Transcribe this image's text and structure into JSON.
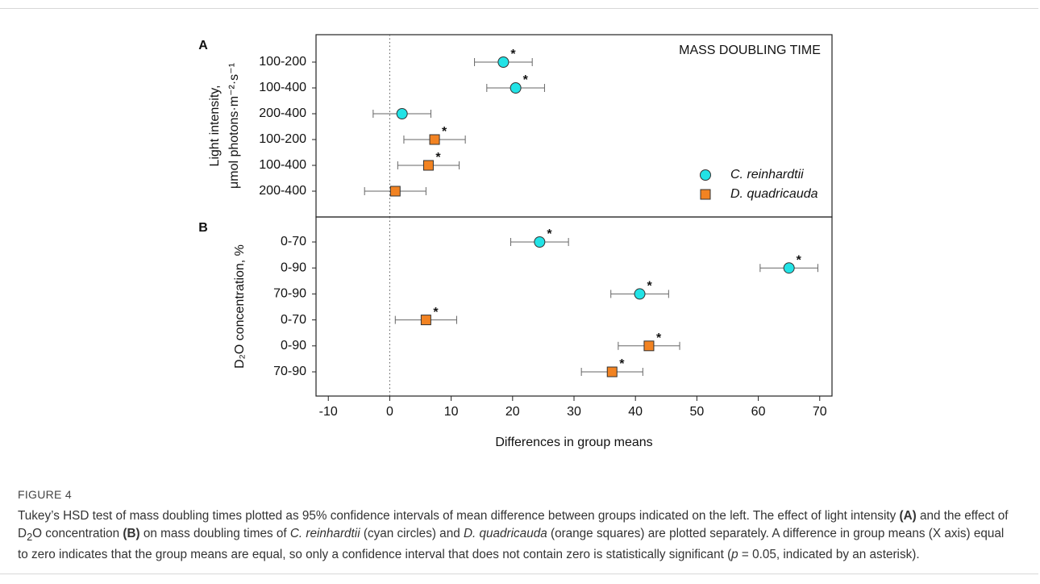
{
  "chart_data": {
    "type": "interval",
    "xlabel": "Differences in group means",
    "xlim": [
      -12,
      72
    ],
    "xticks": [
      -10,
      0,
      10,
      20,
      30,
      40,
      50,
      60,
      70
    ],
    "legend": "lower right",
    "series": [
      {
        "name": "C. reinhardtii",
        "color": "#22e3e6",
        "marker": "circle"
      },
      {
        "name": "D. quadricauda",
        "color": "#f28322",
        "marker": "square"
      }
    ],
    "panels": [
      {
        "label": "A",
        "title": "MASS DOUBLING TIME",
        "ylabel": [
          "Light intensity,",
          "μmol photons·m⁻²·s⁻¹"
        ],
        "categories": [
          "100-200",
          "100-400",
          "200-400",
          "100-200",
          "100-400",
          "200-400"
        ],
        "series": [
          {
            "values": [
              18.5,
              20.5,
              2.0,
              null,
              null,
              null
            ],
            "errors": [
              4.7,
              4.7,
              4.7,
              null,
              null,
              null
            ],
            "annotations": [
              "*",
              "*",
              null,
              null,
              null,
              null
            ]
          },
          {
            "values": [
              null,
              null,
              null,
              7.3,
              6.3,
              0.9
            ],
            "errors": [
              null,
              null,
              null,
              5.0,
              5.0,
              5.0
            ],
            "annotations": [
              null,
              null,
              null,
              "*",
              "*",
              null
            ]
          }
        ]
      },
      {
        "label": "B",
        "ylabel": [
          "D₂O concentration, %"
        ],
        "categories": [
          "0-70",
          "0-90",
          "70-90",
          "0-70",
          "0-90",
          "70-90"
        ],
        "series": [
          {
            "values": [
              24.4,
              65.0,
              40.7,
              null,
              null,
              null
            ],
            "errors": [
              4.7,
              4.7,
              4.7,
              null,
              null,
              null
            ],
            "annotations": [
              "*",
              "*",
              "*",
              null,
              null,
              null
            ]
          },
          {
            "values": [
              null,
              null,
              null,
              5.9,
              42.2,
              36.2
            ],
            "errors": [
              null,
              null,
              null,
              5.0,
              5.0,
              5.0
            ],
            "annotations": [
              null,
              null,
              null,
              "*",
              "*",
              "*"
            ]
          }
        ]
      }
    ]
  },
  "caption": {
    "head": "FIGURE 4",
    "parts": [
      "Tukey’s HSD test of mass doubling times plotted as 95% confidence intervals of mean difference between groups indicated on the left. The effect of light intensity ",
      "(A)",
      " and the effect of D",
      "2",
      "O concentration ",
      "(B)",
      " on mass doubling times of ",
      "C. reinhardtii",
      " (cyan circles) and ",
      "D. quadricauda",
      " (orange squares) are plotted separately. A difference in group means (X axis) equal to zero indicates that the group means are equal, so only a confidence interval that does not contain zero is statistically significant (",
      "p",
      " = 0.05, indicated by an asterisk)."
    ]
  }
}
